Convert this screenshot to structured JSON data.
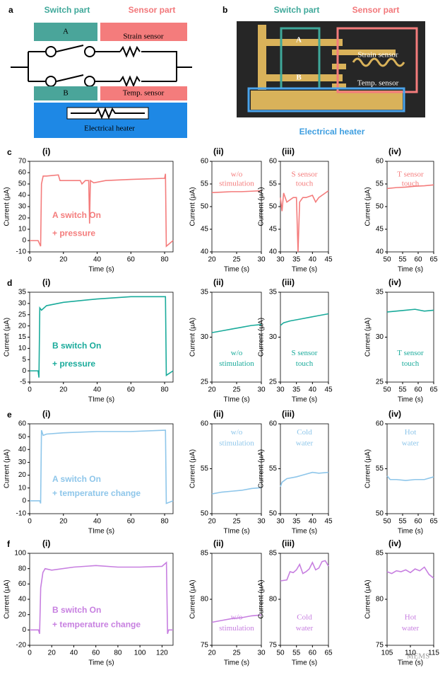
{
  "figure_a": {
    "label": "a",
    "switch_part": "Switch part",
    "sensor_part": "Sensor part",
    "switch_a": "A",
    "strain_sensor": "Strain sensor",
    "switch_b": "B",
    "temp_sensor": "Temp. sensor",
    "heater": "Electrical heater"
  },
  "figure_b": {
    "label": "b",
    "switch_part": "Switch part",
    "sensor_part": "Sensor part",
    "switch_a": "A",
    "switch_b": "B",
    "strain_sensor": "Strain sensor",
    "temp_sensor": "Temp. sensor",
    "heater": "Electrical heater"
  },
  "row_labels": [
    "c",
    "d",
    "e",
    "f"
  ],
  "watermark": "MEMS",
  "chart_data": [
    {
      "type": "line",
      "panel": "(i)",
      "x_label": "Time (s)",
      "y_label": "Current (μA)",
      "annotation": [
        "A switch On",
        "+ pressure"
      ],
      "color": "#f47c7c",
      "xlim": [
        0,
        85
      ],
      "xticks": [
        0,
        20,
        40,
        60,
        80
      ],
      "ylim": [
        -10,
        70
      ],
      "yticks": [
        -10,
        0,
        10,
        20,
        30,
        40,
        50,
        60,
        70
      ],
      "x": [
        0,
        5,
        6.5,
        7,
        8,
        10,
        17,
        18,
        25,
        30,
        31,
        33,
        35,
        35.5,
        36,
        38,
        45,
        60,
        80,
        80.5,
        81,
        85
      ],
      "values": [
        0,
        0,
        -5,
        50,
        57,
        57,
        58,
        53,
        53,
        53,
        50,
        53,
        53,
        15,
        53,
        51,
        53,
        54,
        55,
        59,
        -5,
        0
      ]
    },
    {
      "type": "line",
      "panel": "(ii)",
      "x_label": "Time (s)",
      "y_label": "Current (μA)",
      "annotation": [
        "w/o",
        "stimulation"
      ],
      "color": "#f47c7c",
      "xlim": [
        20,
        30
      ],
      "xticks": [
        20,
        25,
        30
      ],
      "ylim": [
        40,
        60
      ],
      "yticks": [
        40,
        45,
        50,
        55,
        60
      ],
      "x": [
        20,
        22,
        24,
        26,
        28,
        30
      ],
      "values": [
        53.1,
        53.2,
        53.3,
        53.3,
        53.4,
        53.5
      ]
    },
    {
      "type": "line",
      "panel": "(iii)",
      "x_label": "Time (s)",
      "y_label": "Current (μA)",
      "annotation": [
        "S sensor",
        "touch"
      ],
      "color": "#f47c7c",
      "xlim": [
        30,
        45
      ],
      "xticks": [
        30,
        35,
        40,
        45
      ],
      "ylim": [
        40,
        60
      ],
      "yticks": [
        40,
        45,
        50,
        55,
        60
      ],
      "x": [
        30,
        30.5,
        31,
        32,
        34,
        35,
        35.5,
        36,
        37,
        38,
        40,
        41,
        42,
        45
      ],
      "values": [
        52,
        49,
        53,
        51,
        52,
        52,
        40,
        51,
        52,
        52,
        52.5,
        51,
        52,
        53.5
      ]
    },
    {
      "type": "line",
      "panel": "(iv)",
      "x_label": "Time (s)",
      "y_label": "Current (μA)",
      "annotation": [
        "T sensor",
        "touch"
      ],
      "color": "#f47c7c",
      "xlim": [
        50,
        65
      ],
      "xticks": [
        50,
        55,
        60,
        65
      ],
      "ylim": [
        40,
        60
      ],
      "yticks": [
        40,
        45,
        50,
        55,
        60
      ],
      "x": [
        50,
        53,
        56,
        59,
        62,
        65
      ],
      "values": [
        54,
        54.2,
        54.3,
        54.5,
        54.6,
        54.8
      ]
    },
    {
      "type": "line",
      "panel": "(i)",
      "x_label": "TIme (s)",
      "y_label": "Current (μA)",
      "annotation": [
        "B switch On",
        "+ pressure"
      ],
      "color": "#1aab9b",
      "xlim": [
        0,
        85
      ],
      "xticks": [
        0,
        20,
        40,
        60,
        80
      ],
      "ylim": [
        -5,
        35
      ],
      "yticks": [
        -5,
        0,
        5,
        10,
        15,
        20,
        25,
        30,
        35
      ],
      "x": [
        0,
        5,
        5.5,
        6,
        7,
        10,
        20,
        40,
        60,
        80,
        80.5,
        81,
        85
      ],
      "values": [
        0,
        0,
        -3,
        28,
        27,
        29,
        30.5,
        32,
        33,
        33,
        33,
        -2,
        0
      ]
    },
    {
      "type": "line",
      "panel": "(ii)",
      "x_label": "TIme (s)",
      "y_label": "Current (μA)",
      "annotation": [
        "w/o",
        "stimulation"
      ],
      "color": "#1aab9b",
      "xlim": [
        20,
        30
      ],
      "xticks": [
        20,
        25,
        30
      ],
      "ylim": [
        25,
        35
      ],
      "yticks": [
        25,
        30,
        35
      ],
      "x": [
        20,
        22,
        24,
        26,
        28,
        30
      ],
      "values": [
        30.5,
        30.7,
        30.9,
        31.1,
        31.3,
        31.4
      ]
    },
    {
      "type": "line",
      "panel": "(iii)",
      "x_label": "Time (s)",
      "y_label": "Current (μA)",
      "annotation": [
        "S sensor",
        "touch"
      ],
      "color": "#1aab9b",
      "xlim": [
        30,
        45
      ],
      "xticks": [
        30,
        35,
        40,
        45
      ],
      "ylim": [
        25,
        35
      ],
      "yticks": [
        25,
        30,
        35
      ],
      "x": [
        30,
        31,
        33,
        36,
        39,
        42,
        45
      ],
      "values": [
        31.3,
        31.6,
        31.8,
        32,
        32.2,
        32.4,
        32.6
      ]
    },
    {
      "type": "line",
      "panel": "(iv)",
      "x_label": "Time (s)",
      "y_label": "Current (μA)",
      "annotation": [
        "T sensor",
        "touch"
      ],
      "color": "#1aab9b",
      "xlim": [
        50,
        65
      ],
      "xticks": [
        50,
        55,
        60,
        65
      ],
      "ylim": [
        25,
        35
      ],
      "yticks": [
        25,
        30,
        35
      ],
      "x": [
        50,
        53,
        56,
        59,
        62,
        65
      ],
      "values": [
        32.8,
        32.9,
        33,
        33.1,
        32.9,
        33
      ]
    },
    {
      "type": "line",
      "panel": "(i)",
      "x_label": "TIme (s)",
      "y_label": "Current (μA)",
      "annotation": [
        "A switch On",
        "+ temperature change"
      ],
      "color": "#8ec6ea",
      "xlim": [
        0,
        85
      ],
      "xticks": [
        0,
        20,
        40,
        60,
        80
      ],
      "ylim": [
        -10,
        60
      ],
      "yticks": [
        -10,
        0,
        10,
        20,
        30,
        40,
        50,
        60
      ],
      "x": [
        0,
        6,
        6.5,
        7,
        8,
        10,
        20,
        40,
        60,
        80,
        80.5,
        81,
        85
      ],
      "values": [
        0,
        0,
        -2,
        55,
        51,
        52,
        53,
        54,
        54,
        55,
        55,
        -2,
        0
      ]
    },
    {
      "type": "line",
      "panel": "(ii)",
      "x_label": "TIme (s)",
      "y_label": "Current (μA)",
      "annotation": [
        "w/o",
        "stimulation"
      ],
      "color": "#8ec6ea",
      "xlim": [
        20,
        30
      ],
      "xticks": [
        20,
        25,
        30
      ],
      "ylim": [
        50,
        60
      ],
      "yticks": [
        50,
        55,
        60
      ],
      "x": [
        20,
        22,
        24,
        26,
        28,
        30
      ],
      "values": [
        52.2,
        52.4,
        52.5,
        52.6,
        52.8,
        52.9
      ]
    },
    {
      "type": "line",
      "panel": "(iii)",
      "x_label": "Time (s)",
      "y_label": "Current (μA)",
      "annotation": [
        "Cold",
        "water"
      ],
      "color": "#8ec6ea",
      "xlim": [
        30,
        45
      ],
      "xticks": [
        30,
        35,
        40,
        45
      ],
      "ylim": [
        50,
        60
      ],
      "yticks": [
        50,
        55,
        60
      ],
      "x": [
        30,
        30.5,
        32,
        35,
        37,
        40,
        42,
        45
      ],
      "values": [
        53,
        53.5,
        53.9,
        54.1,
        54.3,
        54.6,
        54.5,
        54.6
      ]
    },
    {
      "type": "line",
      "panel": "(iv)",
      "x_label": "Time (s)",
      "y_label": "Current (μA)",
      "annotation": [
        "Hot",
        "water"
      ],
      "color": "#8ec6ea",
      "xlim": [
        50,
        65
      ],
      "xticks": [
        50,
        55,
        60,
        65
      ],
      "ylim": [
        50,
        60
      ],
      "yticks": [
        50,
        55,
        60
      ],
      "x": [
        50,
        51,
        53,
        56,
        59,
        62,
        65
      ],
      "values": [
        54.2,
        53.8,
        53.8,
        53.7,
        53.8,
        53.8,
        54.1
      ]
    },
    {
      "type": "line",
      "panel": "(i)",
      "x_label": "Time (s)",
      "y_label": "Current (μA)",
      "annotation": [
        "B switch On",
        "+ temperature change"
      ],
      "color": "#c77fe0",
      "xlim": [
        0,
        130
      ],
      "xticks": [
        0,
        20,
        40,
        60,
        80,
        100,
        120
      ],
      "ylim": [
        -20,
        100
      ],
      "yticks": [
        -20,
        0,
        20,
        40,
        60,
        80,
        100
      ],
      "x": [
        0,
        8,
        9,
        10,
        12,
        14,
        20,
        40,
        60,
        80,
        100,
        120,
        124,
        125,
        126,
        130
      ],
      "values": [
        0,
        0,
        -5,
        55,
        75,
        80,
        78,
        82,
        84,
        82,
        82,
        83,
        88,
        -5,
        0,
        0
      ]
    },
    {
      "type": "line",
      "panel": "(ii)",
      "x_label": "Time (s)",
      "y_label": "Current (μA)",
      "annotation": [
        "w/o",
        "stimulation"
      ],
      "color": "#c77fe0",
      "xlim": [
        20,
        30
      ],
      "xticks": [
        20,
        25,
        30
      ],
      "ylim": [
        75,
        85
      ],
      "yticks": [
        75,
        80,
        85
      ],
      "x": [
        20,
        22,
        24,
        26,
        28,
        30
      ],
      "values": [
        77.5,
        77.7,
        77.9,
        78,
        78.2,
        78.3
      ]
    },
    {
      "type": "line",
      "panel": "(iii)",
      "x_label": "Time (s)",
      "y_label": "Current (μA)",
      "annotation": [
        "Cold",
        "water"
      ],
      "color": "#c77fe0",
      "xlim": [
        50,
        65
      ],
      "xticks": [
        50,
        55,
        60,
        65
      ],
      "ylim": [
        75,
        85
      ],
      "yticks": [
        75,
        80,
        85
      ],
      "x": [
        50,
        52,
        53,
        54,
        55,
        56,
        57,
        58,
        59,
        60,
        61,
        62,
        63,
        64,
        65
      ],
      "values": [
        82,
        82.1,
        83,
        82.9,
        83.2,
        83.8,
        82.8,
        83,
        83.3,
        84,
        83.2,
        83.4,
        84.1,
        84.2,
        83.6
      ]
    },
    {
      "type": "line",
      "panel": "(iv)",
      "x_label": "Time (s)",
      "y_label": "Current (μA)",
      "annotation": [
        "Hot",
        "water"
      ],
      "color": "#c77fe0",
      "xlim": [
        105,
        115
      ],
      "xticks": [
        105,
        110,
        115
      ],
      "ylim": [
        75,
        85
      ],
      "yticks": [
        75,
        80,
        85
      ],
      "x": [
        105,
        106,
        107,
        108,
        109,
        110,
        111,
        112,
        113,
        114,
        115
      ],
      "values": [
        83,
        82.8,
        83.1,
        83,
        83.2,
        82.9,
        83.3,
        83.1,
        83.5,
        82.7,
        82.3
      ]
    }
  ]
}
